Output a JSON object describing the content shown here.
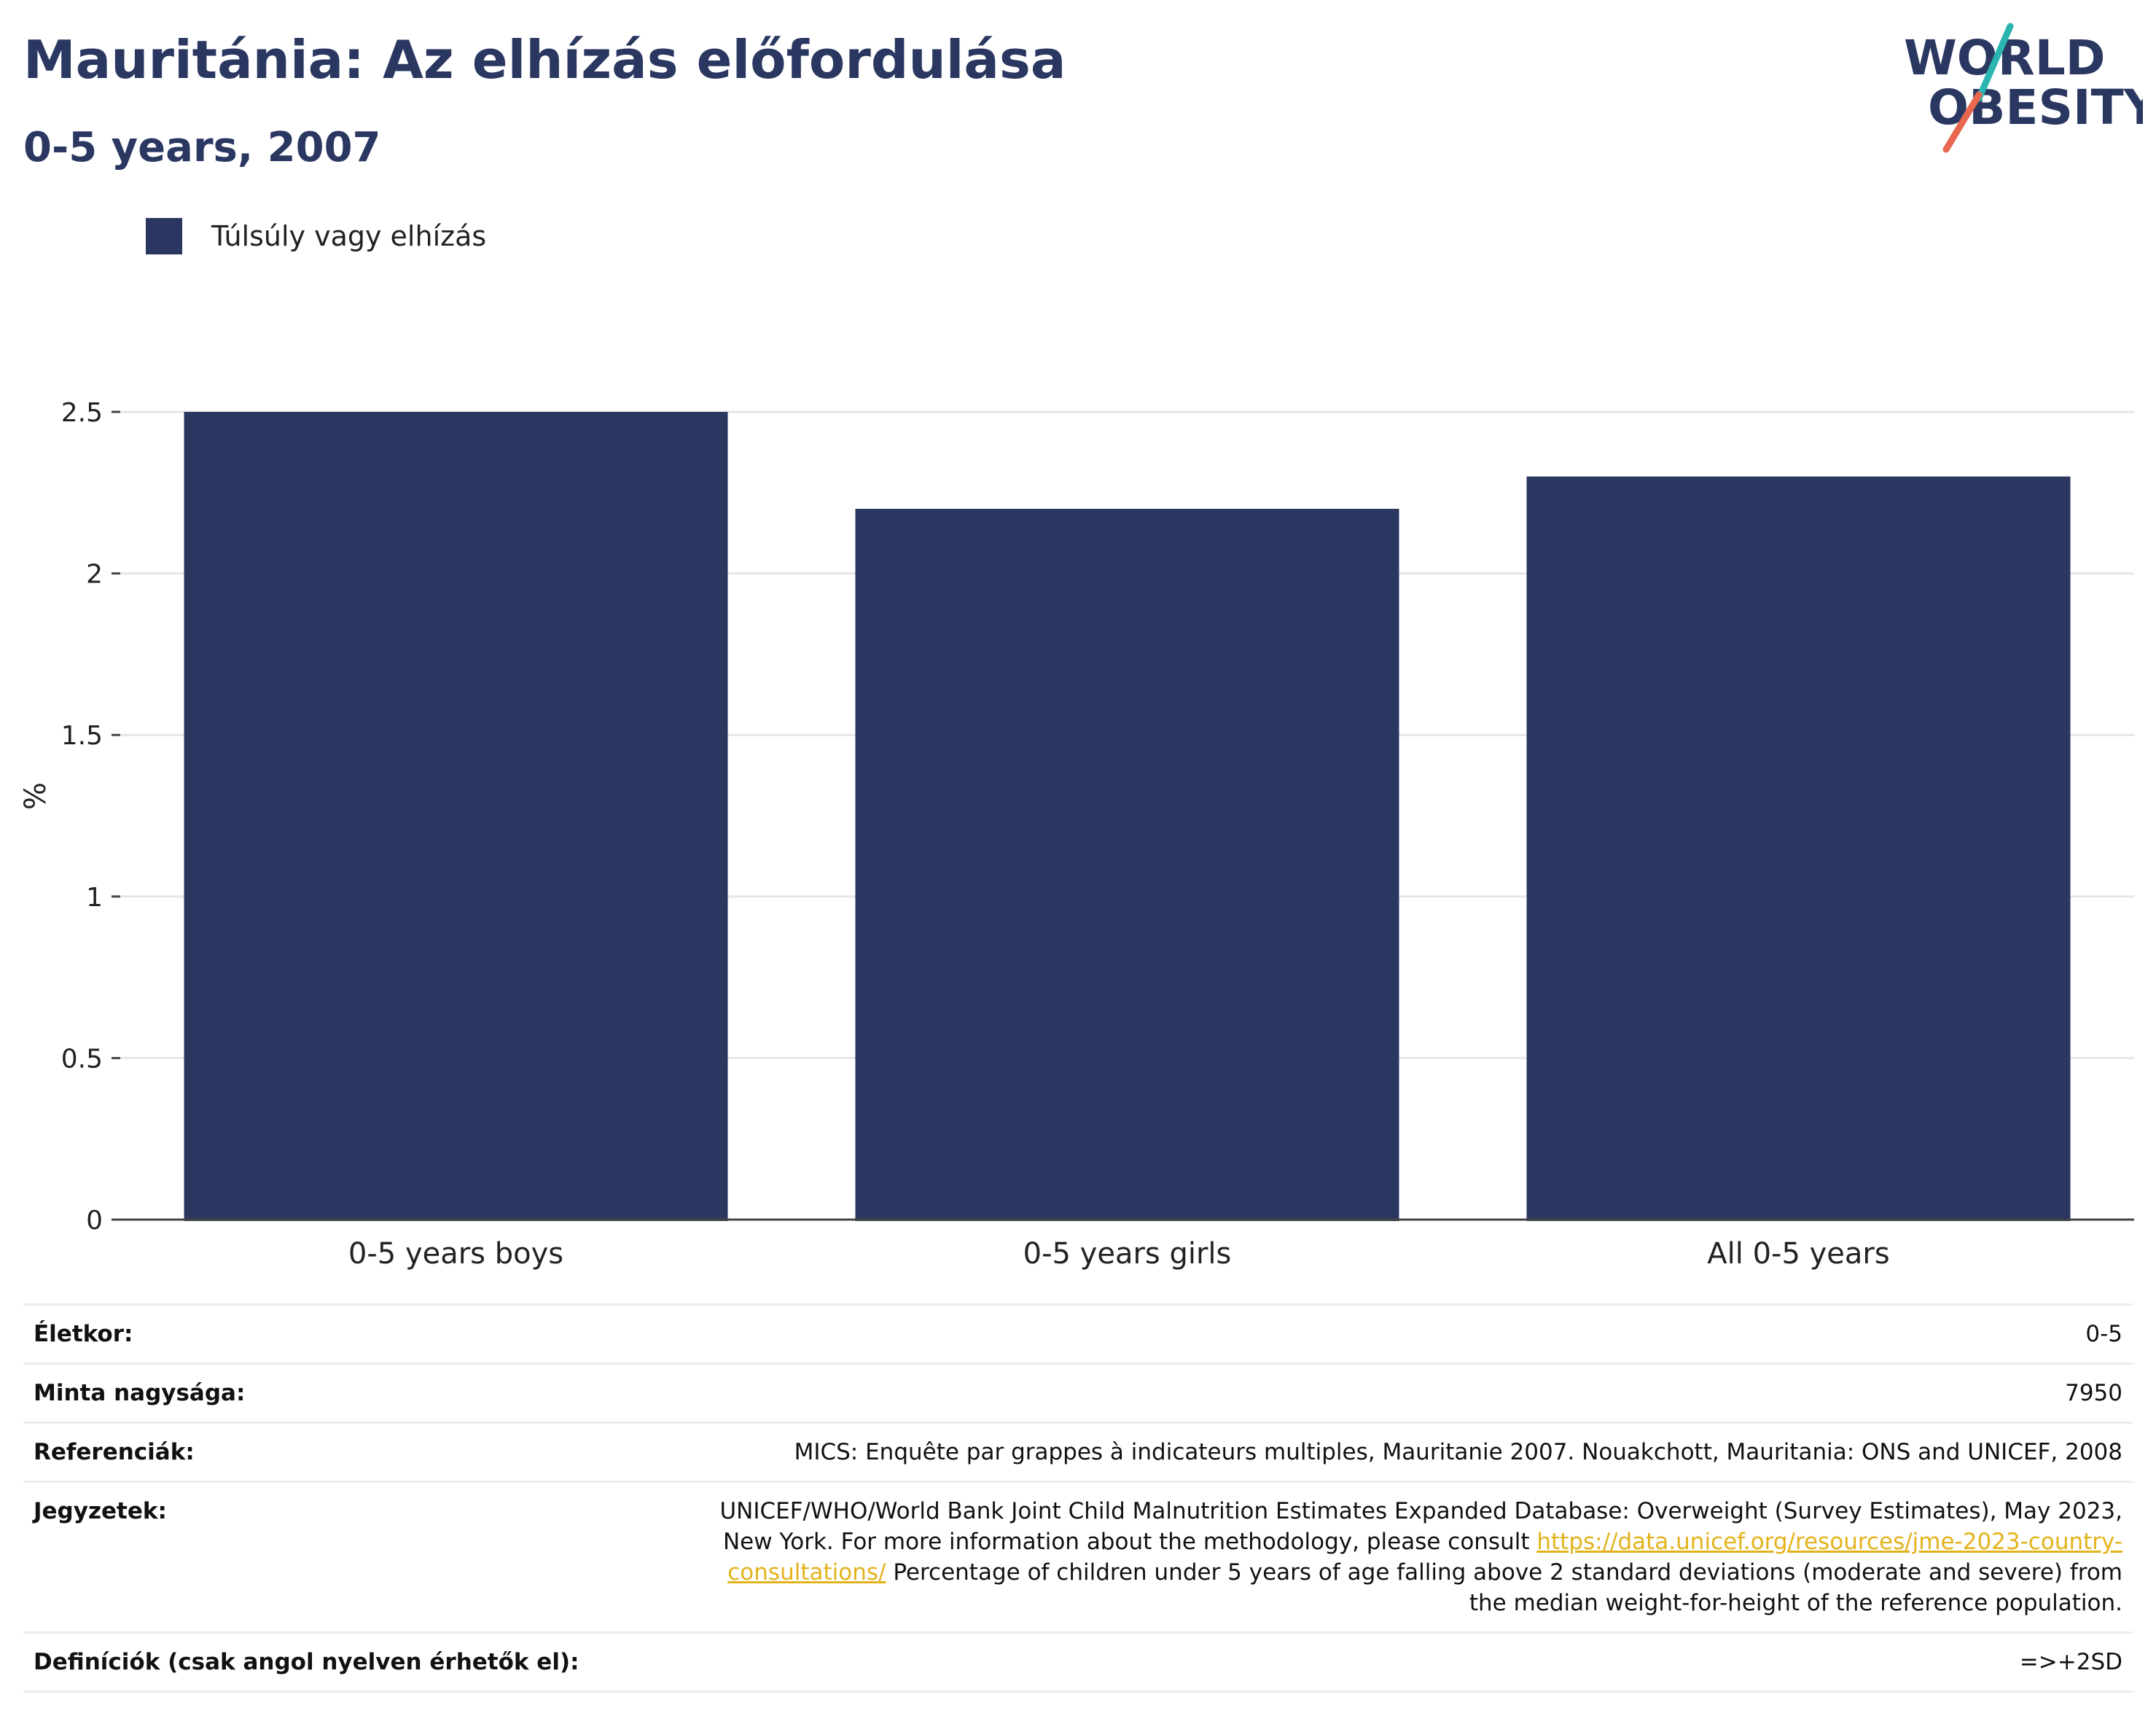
{
  "header": {
    "title": "Mauritánia: Az elhízás előfordulása",
    "subtitle": "0-5 years, 2007",
    "logo_line1": "WORLD",
    "logo_line2": "OBESITY"
  },
  "legend": {
    "label": "Túlsúly vagy elhízás",
    "color": "#2a3761"
  },
  "chart_data": {
    "type": "bar",
    "categories": [
      "0-5 years boys",
      "0-5 years girls",
      "All 0-5 years"
    ],
    "series": [
      {
        "name": "Túlsúly vagy elhízás",
        "values": [
          2.5,
          2.2,
          2.3
        ]
      }
    ],
    "ylabel": "%",
    "ylim": [
      0,
      2.5
    ],
    "yticks": [
      0,
      0.5,
      1,
      1.5,
      2,
      2.5
    ],
    "ytick_labels": [
      "0",
      "0.5",
      "1",
      "1.5",
      "2",
      "2.5"
    ],
    "grid": true,
    "legend_position": "top-left",
    "bar_color": "#2a3761"
  },
  "info": {
    "rows": [
      {
        "key": "Életkor:",
        "value": "0-5"
      },
      {
        "key": "Minta nagysága:",
        "value": "7950"
      },
      {
        "key": "Referenciák:",
        "value": "MICS: Enquête par grappes à indicateurs multiples, Mauritanie 2007. Nouakchott, Mauritania: ONS and UNICEF, 2008"
      },
      {
        "key": "Jegyzetek:",
        "value_before": "UNICEF/WHO/World Bank Joint Child Malnutrition Estimates Expanded Database: Overweight (Survey Estimates), May 2023, New York. For more information about the methodology, please consult ",
        "link_text": "https://data.unicef.org/resources/jme-2023-country-consultations/",
        "value_after": " Percentage of children under 5 years of age falling above 2 standard deviations (moderate and severe) from the median weight-for-height of the reference population."
      },
      {
        "key": "Definíciók (csak angol nyelven érhetők el):",
        "value": "=>+2SD"
      }
    ]
  }
}
